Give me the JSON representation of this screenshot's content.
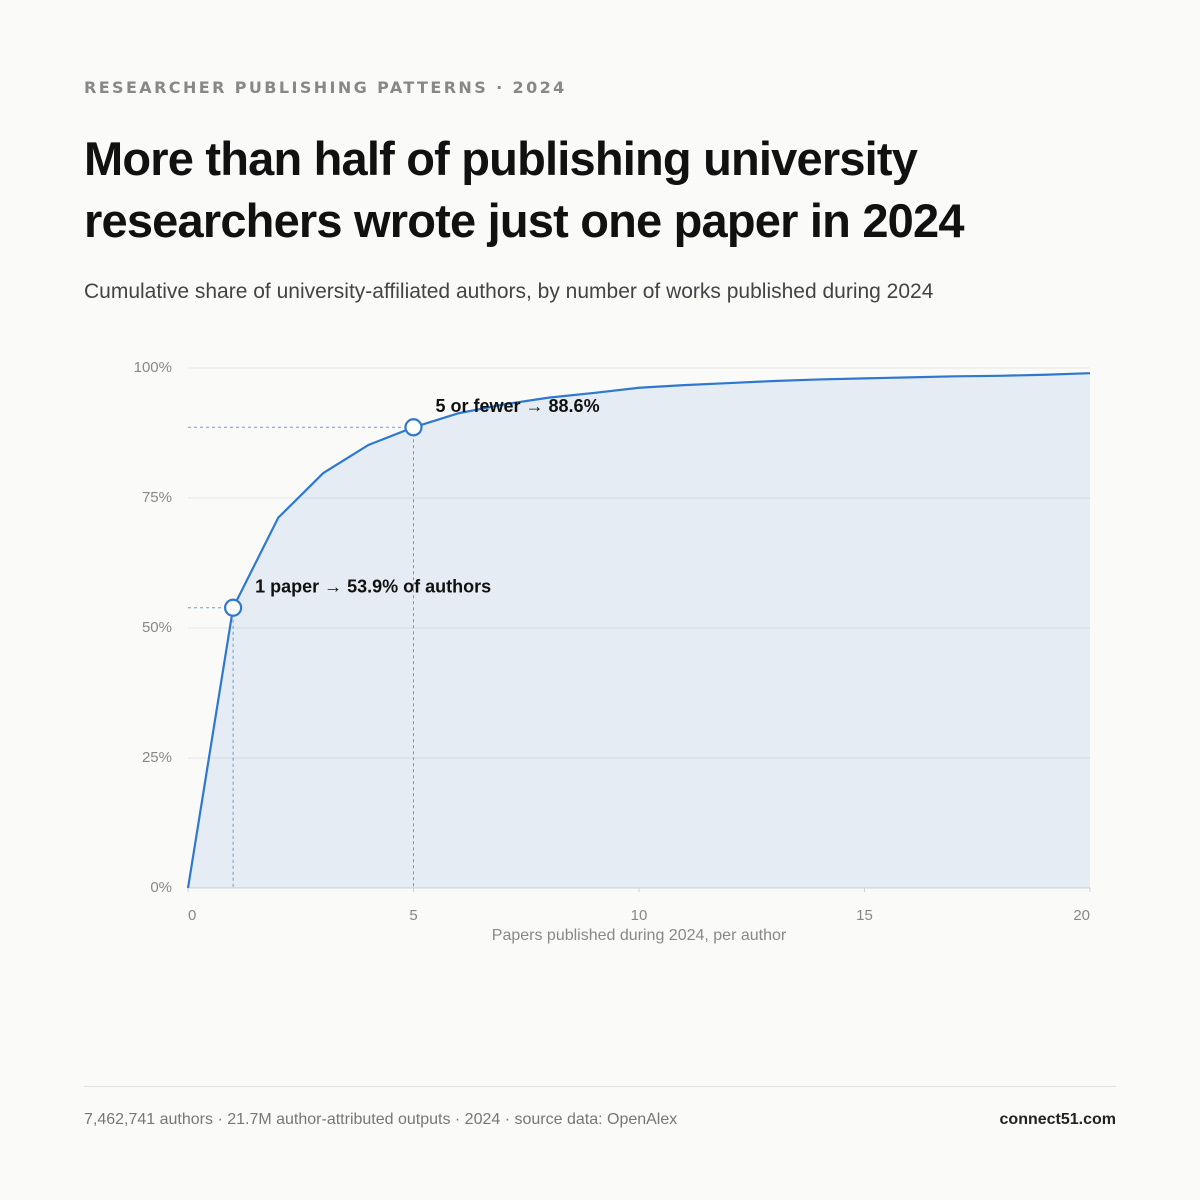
{
  "chart_data": {
    "type": "line",
    "kicker": "RESEARCHER PUBLISHING PATTERNS · 2024",
    "title": "More than half of publishing university researchers wrote just one paper in 2024",
    "subtitle": "Cumulative share of university-affiliated authors, by number of works published during 2024",
    "x_label": "Papers published during 2024, per author",
    "x": [
      0,
      1,
      2,
      3,
      4,
      5,
      6,
      7,
      8,
      9,
      10,
      11,
      12,
      13,
      14,
      15,
      16,
      17,
      18,
      19,
      20
    ],
    "series": [
      {
        "name": "Cumulative share of authors",
        "color": "#2f78cf",
        "values": [
          0,
          53.9,
          71.2,
          79.8,
          85.2,
          88.6,
          91.3,
          93.0,
          94.3,
          95.2,
          96.2,
          96.7,
          97.1,
          97.5,
          97.8,
          98.0,
          98.2,
          98.4,
          98.5,
          98.7,
          99.0
        ]
      }
    ],
    "xlim": [
      0,
      20
    ],
    "xticks": [
      0,
      5,
      10,
      15,
      20
    ],
    "ylim": [
      0,
      100
    ],
    "yticks": [
      {
        "value": 0,
        "label": "0%"
      },
      {
        "value": 25,
        "label": "25%"
      },
      {
        "value": 50,
        "label": "50%"
      },
      {
        "value": 75,
        "label": "75%"
      },
      {
        "value": 100,
        "label": "100%"
      }
    ],
    "grid": true,
    "annotations": [
      {
        "x": 1,
        "y": 53.9,
        "text": "1 paper → 53.9% of authors"
      },
      {
        "x": 5,
        "y": 88.6,
        "text": "5 or fewer → 88.6%"
      }
    ]
  },
  "footer": {
    "note": "7,462,741 authors · 21.7M author-attributed outputs · 2024 · source data: OpenAlex",
    "brand": "connect51.com"
  }
}
